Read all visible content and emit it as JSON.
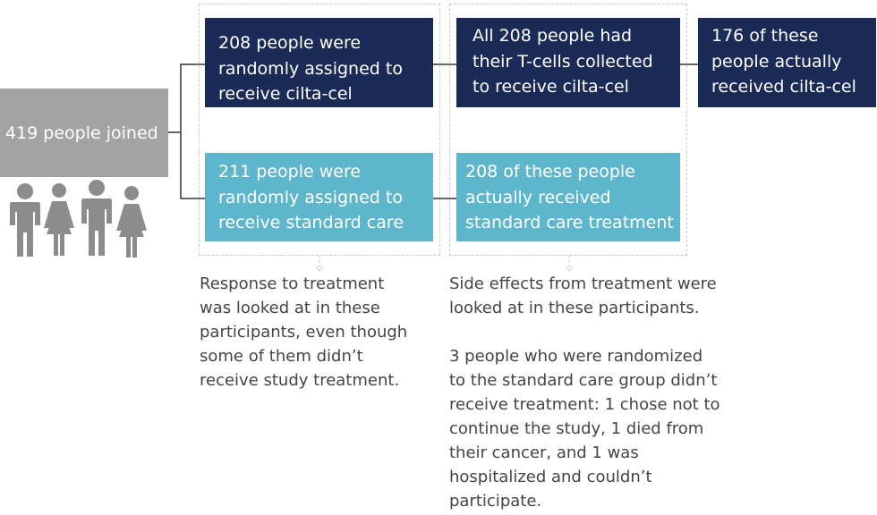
{
  "start": {
    "label": "419 people joined"
  },
  "randomized": {
    "cilta_cel": [
      "208 people were",
      "randomly assigned to",
      "receive cilta-cel"
    ],
    "standard_care": [
      "211 people were",
      "randomly assigned to",
      "receive standard care"
    ]
  },
  "collected": {
    "cilta_cel": [
      "All 208 people had",
      "their T-cells collected",
      "to receive cilta-cel"
    ],
    "standard_care": [
      "208 of these people",
      "actually received",
      "standard care treatment"
    ]
  },
  "received": {
    "cilta_cel": [
      "176 of these",
      "people actually",
      "received cilta-cel"
    ]
  },
  "notes": {
    "response": [
      "Response to treatment",
      "was looked at in these",
      "participants, even though",
      "some of them didn’t",
      "receive study treatment."
    ],
    "side_effects": [
      "Side effects from treatment were",
      "looked at in these participants."
    ],
    "excluded": [
      "3 people who were randomized",
      "to the standard care group didn’t",
      "receive treatment: 1 chose not to",
      "continue the study, 1 died from",
      "their cancer, and 1 was",
      "hospitalized and couldn’t",
      "participate."
    ]
  },
  "colors": {
    "dark_box": "#1b2b57",
    "light_box": "#5eb6cc",
    "start_box": "#a3a3a3",
    "person_icon": "#8c8c8c"
  }
}
